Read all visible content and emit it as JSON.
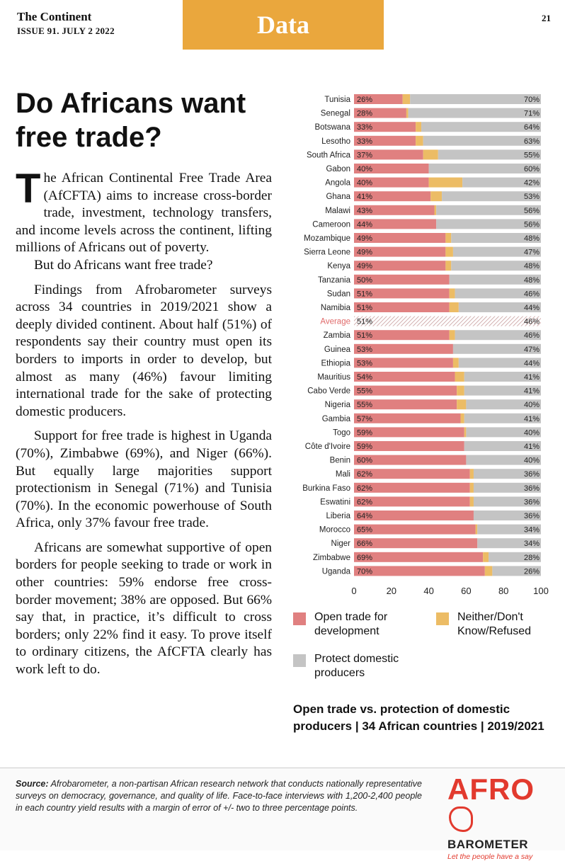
{
  "masthead": {
    "publication": "The Continent",
    "issue": "ISSUE 91. JULY 2 2022"
  },
  "section": "Data",
  "page_number": "21",
  "headline": "Do Africans want free trade?",
  "article": {
    "dropcap": "T",
    "p1": "he African Continental Free Trade Area (AfCFTA) aims to increase cross-border trade, investment, technology transfers, and income levels across the continent, lifting millions of Africans out of poverty.",
    "p2": "But do Africans want free trade?",
    "p3": "Findings from Afrobarometer surveys across 34 countries in 2019/2021 show a deeply divided continent. About half (51%) of respondents say their country must open its borders to imports in order to develop, but almost as many (46%) favour limiting international trade for the sake of protecting domestic producers.",
    "p4": "Support for free trade is highest in Uganda (70%), Zimbabwe (69%), and Niger (66%). But equally large majorities support protectionism in Senegal (71%) and Tunisia (70%). In the economic powerhouse of South Africa, only 37% favour free trade.",
    "p5": "Africans are somewhat supportive of open borders for people seeking to trade or work in other countries: 59% endorse free cross-border movement; 38% are opposed. But 66% say that, in practice, it’s difficult to cross borders; only 22% find it easy. To prove itself to ordinary citizens, the AfCFTA clearly has work left to do."
  },
  "legend": {
    "open": "Open trade for development",
    "neither": "Neither/Don't Know/Refused",
    "protect": "Protect domestic producers"
  },
  "chart_caption": "Open trade vs. protection of domestic producers | 34 African countries | 2019/2021",
  "footer": {
    "source_label": "Source:",
    "source_text": "Afrobarometer, a non-partisan African research network that conducts nationally representative surveys on democracy, governance, and quality of life. Face-to-face interviews with 1,200-2,400 people in each country yield results with a margin of error of +/- two to three percentage points."
  },
  "logo": {
    "line1": "AFRO",
    "line2": "BAROMETER",
    "tagline": "Let the people have a say"
  },
  "colors": {
    "open": "#e08080",
    "neither": "#ecbc65",
    "protect": "#c4c4c4",
    "accent": "#eaa73d",
    "average_label": "#e06a6a"
  },
  "chart_data": {
    "type": "bar",
    "orientation": "horizontal-stacked",
    "title": "Open trade vs. protection of domestic producers | 34 African countries | 2019/2021",
    "categories": [
      "Tunisia",
      "Senegal",
      "Botswana",
      "Lesotho",
      "South Africa",
      "Gabon",
      "Angola",
      "Ghana",
      "Malawi",
      "Cameroon",
      "Mozambique",
      "Sierra Leone",
      "Kenya",
      "Tanzania",
      "Sudan",
      "Namibia",
      "Average",
      "Zambia",
      "Guinea",
      "Ethiopia",
      "Mauritius",
      "Cabo Verde",
      "Nigeria",
      "Gambia",
      "Togo",
      "Côte d'Ivoire",
      "Benin",
      "Mali",
      "Burkina Faso",
      "Eswatini",
      "Liberia",
      "Morocco",
      "Niger",
      "Zimbabwe",
      "Uganda"
    ],
    "series": [
      {
        "name": "Open trade for development",
        "values": [
          26,
          28,
          33,
          33,
          37,
          40,
          40,
          41,
          43,
          44,
          49,
          49,
          49,
          50,
          51,
          51,
          51,
          51,
          53,
          53,
          54,
          55,
          55,
          57,
          59,
          59,
          60,
          62,
          62,
          62,
          64,
          65,
          66,
          69,
          70
        ]
      },
      {
        "name": "Neither/Don't Know/Refused",
        "values": [
          4,
          1,
          3,
          4,
          8,
          0,
          18,
          6,
          1,
          0,
          3,
          4,
          3,
          0,
          3,
          5,
          3,
          3,
          0,
          3,
          5,
          4,
          5,
          2,
          1,
          0,
          0,
          2,
          2,
          2,
          0,
          1,
          0,
          3,
          4
        ]
      },
      {
        "name": "Protect domestic producers",
        "values": [
          70,
          71,
          64,
          63,
          55,
          60,
          42,
          53,
          56,
          56,
          48,
          47,
          48,
          48,
          46,
          44,
          46,
          46,
          47,
          44,
          41,
          41,
          40,
          41,
          40,
          41,
          40,
          36,
          36,
          36,
          36,
          34,
          34,
          28,
          26
        ]
      }
    ],
    "xlim": [
      0,
      100
    ],
    "xticks": [
      0,
      20,
      40,
      60,
      80,
      100
    ],
    "grid": false,
    "legend_position": "bottom"
  }
}
